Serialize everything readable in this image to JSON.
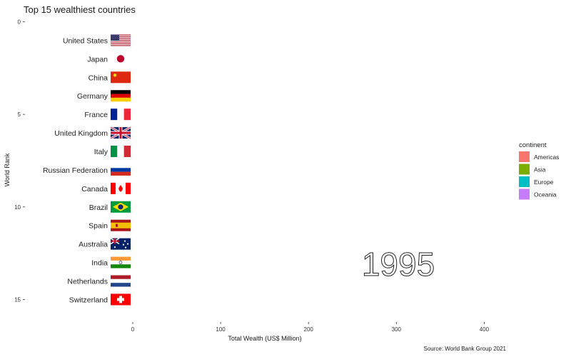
{
  "chart_data": {
    "type": "bar",
    "title": "Top 15 wealthiest countries",
    "xlabel": "Total Wealth (US$ Million)",
    "ylabel": "World Rank",
    "caption": "Source: World Bank Group 2021",
    "frame_label": "1995",
    "xlim": [
      -30,
      470
    ],
    "ylim": [
      -0.5,
      16.2
    ],
    "x_ticks": [
      0,
      100,
      200,
      300,
      400
    ],
    "y_ticks": [
      0,
      5,
      10,
      15
    ],
    "grid": false,
    "legend": {
      "title": "continent",
      "position": "right",
      "entries": [
        {
          "label": "Americas",
          "color": "#F8766D"
        },
        {
          "label": "Asia",
          "color": "#7CAE00"
        },
        {
          "label": "Europe",
          "color": "#00BFC4"
        },
        {
          "label": "Oceania",
          "color": "#C77CFF"
        }
      ]
    },
    "categories": [
      "United States",
      "Japan",
      "China",
      "Germany",
      "France",
      "United Kingdom",
      "Italy",
      "Russian Federation",
      "Canada",
      "Brazil",
      "Spain",
      "Australia",
      "India",
      "Netherlands",
      "Switzerland"
    ],
    "ranks": [
      1,
      2,
      3,
      4,
      5,
      6,
      7,
      8,
      9,
      10,
      11,
      12,
      13,
      14,
      15
    ],
    "values": [
      0,
      0,
      0,
      0,
      0,
      0,
      0,
      0,
      0,
      0,
      0,
      0,
      0,
      0,
      0
    ],
    "flags": [
      "us-flag",
      "japan-flag",
      "china-flag",
      "germany-flag",
      "france-flag",
      "uk-flag",
      "italy-flag",
      "russia-flag",
      "canada-flag",
      "brazil-flag",
      "spain-flag",
      "australia-flag",
      "india-flag",
      "netherlands-flag",
      "switzerland-flag"
    ]
  }
}
